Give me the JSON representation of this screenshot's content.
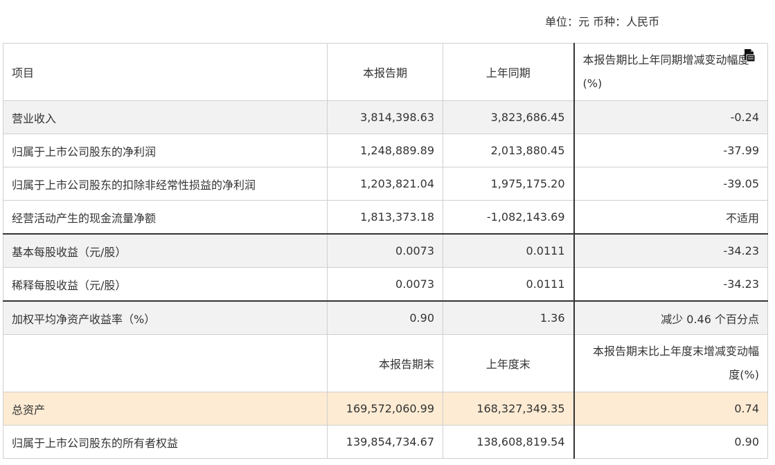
{
  "unit_line": "单位：元  币种：人民币",
  "header": {
    "col1": "项目",
    "col2": "本报告期",
    "col3": "上年同期",
    "col4": "本报告期比上年同期增减变动幅度(%)"
  },
  "rows": [
    {
      "item": "营业收入",
      "current": "3,814,398.63",
      "prior": "3,823,686.45",
      "change": "-0.24"
    },
    {
      "item": "归属于上市公司股东的净利润",
      "current": "1,248,889.89",
      "prior": "2,013,880.45",
      "change": "-37.99"
    },
    {
      "item": "归属于上市公司股东的扣除非经常性损益的净利润",
      "current": "1,203,821.04",
      "prior": "1,975,175.20",
      "change": "-39.05"
    },
    {
      "item": "经营活动产生的现金流量净额",
      "current": "1,813,373.18",
      "prior": "-1,082,143.69",
      "change": "不适用"
    },
    {
      "item": "基本每股收益（元/股）",
      "current": "0.0073",
      "prior": "0.0111",
      "change": "-34.23"
    },
    {
      "item": "稀释每股收益（元/股）",
      "current": "0.0073",
      "prior": "0.0111",
      "change": "-34.23"
    },
    {
      "item": "加权平均净资产收益率（%）",
      "current": "0.90",
      "prior": "1.36",
      "change": "减少 0.46 个百分点"
    }
  ],
  "header2": {
    "col1": "",
    "col2": "本报告期末",
    "col3": "上年度末",
    "col4": "本报告期末比上年度末增减变动幅度(%)"
  },
  "rows2": [
    {
      "item": "总资产",
      "current": "169,572,060.99",
      "prior": "168,327,349.35",
      "change": "0.74"
    },
    {
      "item": "归属于上市公司股东的所有者权益",
      "current": "139,854,734.67",
      "prior": "138,608,819.54",
      "change": "0.90"
    }
  ],
  "icons": {
    "header_icon": "document-icon"
  },
  "colors": {
    "shaded_row": "#f2f2f2",
    "highlight_row": "#fdebd3",
    "border": "#cfcfcf",
    "rule": "#333333"
  }
}
